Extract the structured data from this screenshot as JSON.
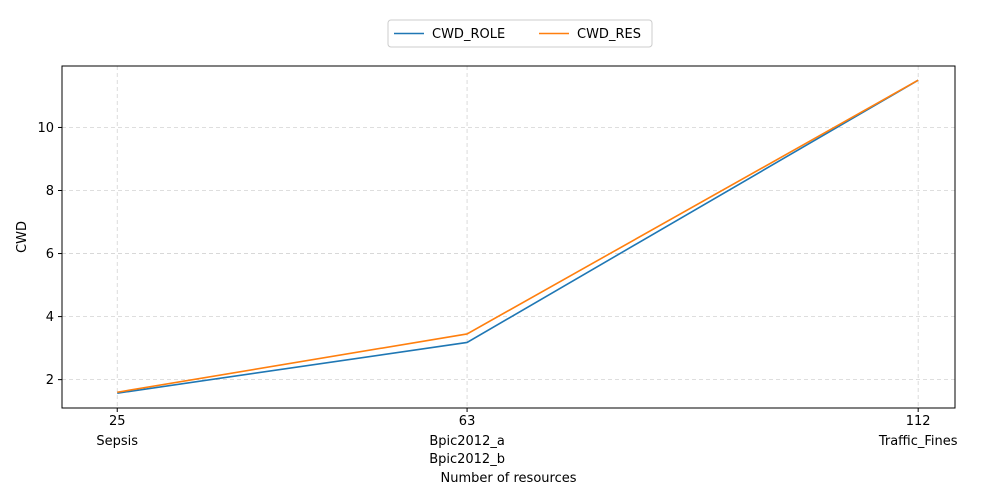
{
  "chart_data": {
    "type": "line",
    "title": "",
    "xlabel": "Number of resources",
    "ylabel": "CWD",
    "x": [
      25,
      63,
      112
    ],
    "x_tick_labels": [
      {
        "value": 25,
        "number": "25",
        "names": [
          "Sepsis"
        ]
      },
      {
        "value": 63,
        "number": "63",
        "names": [
          "Bpic2012_a",
          "Bpic2012_b"
        ]
      },
      {
        "value": 112,
        "number": "112",
        "names": [
          "Traffic_Fines"
        ]
      }
    ],
    "y_ticks": [
      2,
      4,
      6,
      8,
      10
    ],
    "xlim": [
      19,
      116
    ],
    "ylim": [
      1.1,
      11.95
    ],
    "grid": true,
    "legend_position": "top-center",
    "series": [
      {
        "name": "CWD_ROLE",
        "color": "#1f77b4",
        "values": [
          1.57,
          3.18,
          11.5
        ]
      },
      {
        "name": "CWD_RES",
        "color": "#ff7f0e",
        "values": [
          1.6,
          3.45,
          11.5
        ]
      }
    ]
  }
}
